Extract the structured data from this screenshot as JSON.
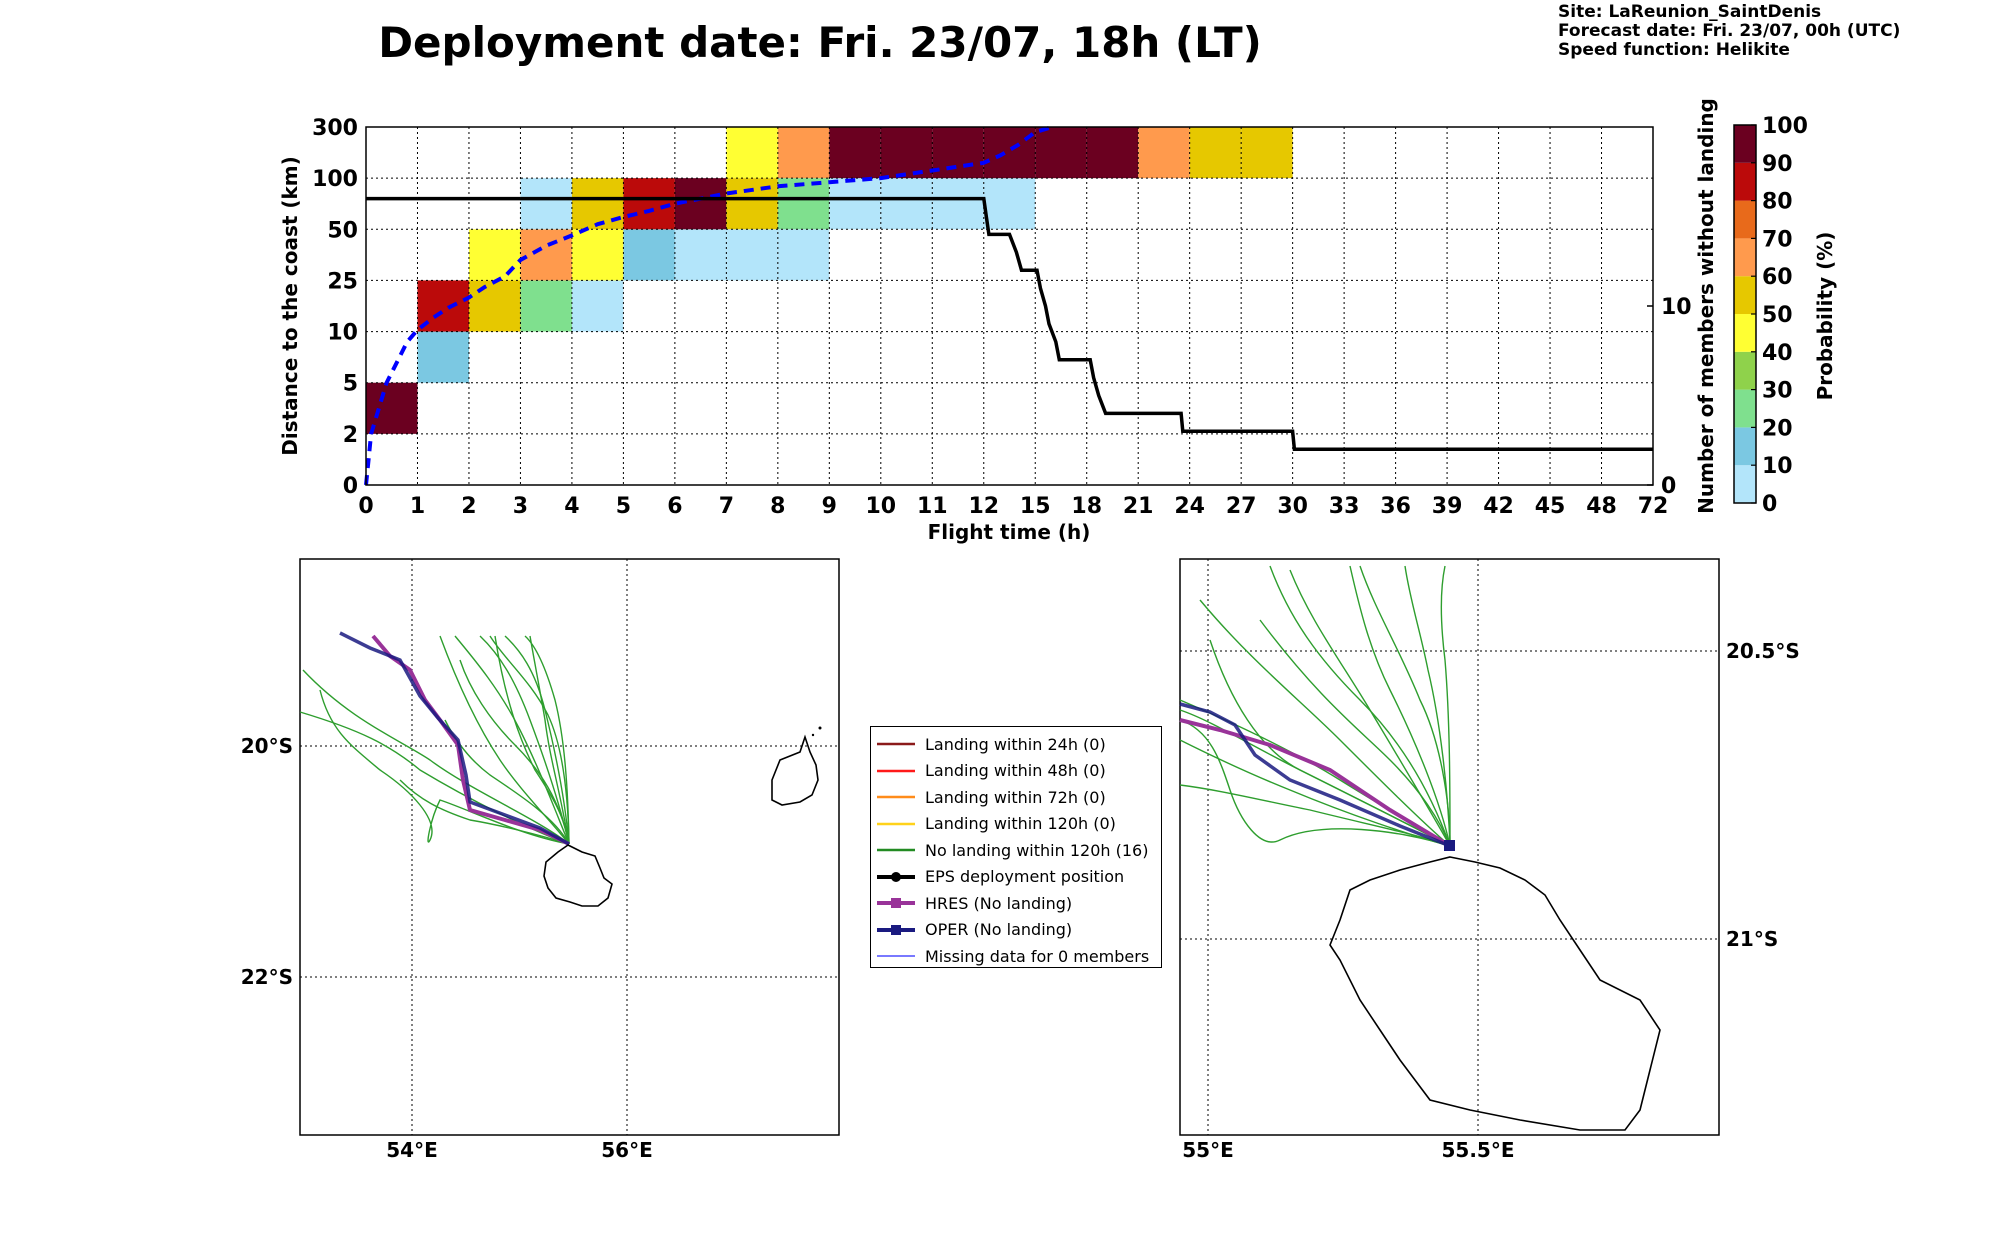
{
  "header": {
    "title": "Deployment date: Fri. 23/07, 18h (LT)",
    "site": "Site: LaReunion_SaintDenis",
    "forecast": "Forecast date: Fri. 23/07, 00h (UTC)",
    "speed": "Speed function: Helikite"
  },
  "chart_data": [
    {
      "type": "heatmap",
      "xlabel": "Flight time (h)",
      "ylabel": "Distance to the coast (km)",
      "ylabel_right": "Number of members without landing",
      "colorbar_label": "Probability (%)",
      "x_ticks": [
        "0",
        "1",
        "2",
        "3",
        "4",
        "5",
        "6",
        "7",
        "8",
        "9",
        "10",
        "11",
        "12",
        "15",
        "18",
        "21",
        "24",
        "27",
        "30",
        "33",
        "36",
        "39",
        "42",
        "45",
        "48",
        "72"
      ],
      "y_ticks": [
        "0",
        "2",
        "5",
        "10",
        "25",
        "50",
        "100",
        "300"
      ],
      "right_ticks": [
        "0",
        "10"
      ],
      "right_ylim": [
        0,
        20
      ],
      "colorbar_ticks": [
        "0",
        "10",
        "20",
        "30",
        "40",
        "50",
        "60",
        "70",
        "80",
        "90",
        "100"
      ],
      "colorbar_colors": [
        "#b3e5fa",
        "#7bc8e2",
        "#7fe08e",
        "#8fd24b",
        "#ffff33",
        "#e6c800",
        "#ff9a4d",
        "#e86a1b",
        "#bb0a0a",
        "#6b0020"
      ],
      "grid": true,
      "cells": [
        {
          "x_bin": 0,
          "y_bin": 1,
          "value": 100
        },
        {
          "x_bin": 1,
          "y_bin": 2,
          "value": 10
        },
        {
          "x_bin": 1,
          "y_bin": 3,
          "value": 85
        },
        {
          "x_bin": 2,
          "y_bin": 3,
          "value": 55
        },
        {
          "x_bin": 2,
          "y_bin": 4,
          "value": 45
        },
        {
          "x_bin": 3,
          "y_bin": 3,
          "value": 20
        },
        {
          "x_bin": 3,
          "y_bin": 4,
          "value": 60
        },
        {
          "x_bin": 3,
          "y_bin": 5,
          "value": 5
        },
        {
          "x_bin": 4,
          "y_bin": 3,
          "value": 5
        },
        {
          "x_bin": 4,
          "y_bin": 4,
          "value": 45
        },
        {
          "x_bin": 4,
          "y_bin": 5,
          "value": 55
        },
        {
          "x_bin": 5,
          "y_bin": 4,
          "value": 15
        },
        {
          "x_bin": 5,
          "y_bin": 5,
          "value": 85
        },
        {
          "x_bin": 6,
          "y_bin": 4,
          "value": 5
        },
        {
          "x_bin": 6,
          "y_bin": 5,
          "value": 95
        },
        {
          "x_bin": 7,
          "y_bin": 4,
          "value": 5
        },
        {
          "x_bin": 7,
          "y_bin": 5,
          "value": 55
        },
        {
          "x_bin": 7,
          "y_bin": 6,
          "value": 45
        },
        {
          "x_bin": 8,
          "y_bin": 4,
          "value": 5
        },
        {
          "x_bin": 8,
          "y_bin": 5,
          "value": 25
        },
        {
          "x_bin": 8,
          "y_bin": 6,
          "value": 65
        },
        {
          "x_bin": 9,
          "y_bin": 5,
          "value": 5
        },
        {
          "x_bin": 9,
          "y_bin": 6,
          "value": 95
        },
        {
          "x_bin": 10,
          "y_bin": 5,
          "value": 5
        },
        {
          "x_bin": 10,
          "y_bin": 6,
          "value": 95
        },
        {
          "x_bin": 11,
          "y_bin": 5,
          "value": 5
        },
        {
          "x_bin": 11,
          "y_bin": 6,
          "value": 95
        },
        {
          "x_bin": 12,
          "y_bin": 5,
          "value": 5
        },
        {
          "x_bin": 12,
          "y_bin": 6,
          "value": 95
        },
        {
          "x_bin": 13,
          "y_bin": 6,
          "value": 95
        },
        {
          "x_bin": 14,
          "y_bin": 6,
          "value": 95
        },
        {
          "x_bin": 15,
          "y_bin": 6,
          "value": 65
        },
        {
          "x_bin": 16,
          "y_bin": 6,
          "value": 55
        },
        {
          "x_bin": 17,
          "y_bin": 6,
          "value": 55
        }
      ],
      "distance_curve": {
        "color": "#0000ff",
        "style": "dashed",
        "points": [
          [
            0,
            0
          ],
          [
            0.05,
            1
          ],
          [
            0.1,
            2
          ],
          [
            0.2,
            3
          ],
          [
            0.4,
            5
          ],
          [
            0.6,
            7
          ],
          [
            0.8,
            9
          ],
          [
            1,
            10.5
          ],
          [
            1.3,
            14
          ],
          [
            1.6,
            17
          ],
          [
            2,
            20
          ],
          [
            2.3,
            23
          ],
          [
            2.7,
            27
          ],
          [
            3,
            35
          ],
          [
            3.5,
            42
          ],
          [
            4,
            47
          ],
          [
            4.5,
            55
          ],
          [
            5,
            62
          ],
          [
            5.5,
            68
          ],
          [
            6,
            75
          ],
          [
            7,
            85
          ],
          [
            8,
            92
          ],
          [
            9,
            96
          ],
          [
            10,
            100
          ],
          [
            11,
            130
          ],
          [
            12,
            160
          ],
          [
            13,
            190
          ],
          [
            14,
            230
          ],
          [
            15,
            280
          ],
          [
            16,
            300
          ]
        ]
      },
      "members_curve": {
        "color": "#000000",
        "points": [
          [
            0,
            16
          ],
          [
            12,
            16
          ],
          [
            12.15,
            15
          ],
          [
            12.3,
            14
          ],
          [
            13.5,
            14
          ],
          [
            13.9,
            13
          ],
          [
            14.2,
            12
          ],
          [
            15.1,
            12
          ],
          [
            15.3,
            11
          ],
          [
            15.6,
            10
          ],
          [
            15.8,
            9
          ],
          [
            16.2,
            8
          ],
          [
            16.4,
            7
          ],
          [
            18.2,
            7
          ],
          [
            18.4,
            6
          ],
          [
            18.7,
            5
          ],
          [
            19.1,
            4
          ],
          [
            23.5,
            4
          ],
          [
            23.6,
            3
          ],
          [
            30,
            3
          ],
          [
            30.1,
            2
          ],
          [
            72,
            2
          ]
        ]
      }
    },
    {
      "type": "map",
      "lon_ticks": [
        "54°E",
        "56°E"
      ],
      "lat_ticks": [
        "20°S",
        "22°S"
      ]
    },
    {
      "type": "map",
      "lon_ticks": [
        "55°E",
        "55.5°E"
      ],
      "lat_ticks": [
        "20.5°S",
        "21°S"
      ]
    }
  ],
  "legend": [
    {
      "label": "Landing within 24h (0)",
      "color": "#8b1a1a",
      "marker": "line"
    },
    {
      "label": "Landing within 48h (0)",
      "color": "#ff1a1a",
      "marker": "line"
    },
    {
      "label": "Landing within 72h (0)",
      "color": "#ff8c1a",
      "marker": "line"
    },
    {
      "label": "Landing within 120h (0)",
      "color": "#ffd21a",
      "marker": "line"
    },
    {
      "label": "No landing within 120h (16)",
      "color": "#228b22",
      "marker": "line"
    },
    {
      "label": "EPS deployment position",
      "color": "#000000",
      "marker": "dot"
    },
    {
      "label": "HRES (No landing)",
      "color": "#993399",
      "marker": "square"
    },
    {
      "label": "OPER (No landing)",
      "color": "#1a1a80",
      "marker": "square"
    },
    {
      "label": "Missing data for 0 members",
      "color": "#4d4dff",
      "marker": "thin"
    }
  ]
}
